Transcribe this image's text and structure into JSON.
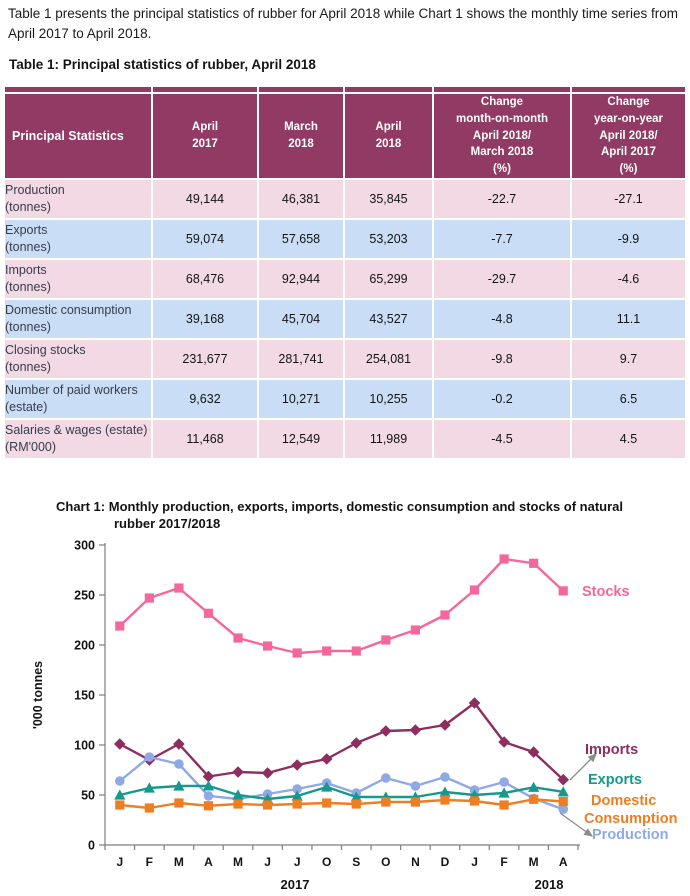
{
  "intro_text": "Table 1 presents the principal statistics of rubber for April 2018 while Chart 1 shows the monthly time series from April 2017 to April 2018.",
  "table": {
    "title": "Table 1: Principal statistics  of rubber, April 2018",
    "columns": [
      [
        "Principal Statistics"
      ],
      [
        "April",
        "2017"
      ],
      [
        "March",
        "2018"
      ],
      [
        "April",
        "2018"
      ],
      [
        "Change",
        "month-on-month",
        "April 2018/",
        "March 2018",
        "(%)"
      ],
      [
        "Change",
        "year-on-year",
        "April 2018/",
        "April 2017",
        "(%)"
      ]
    ],
    "rows": [
      {
        "label": "Production",
        "unit": "(tonnes)",
        "values": [
          "49,144",
          "46,381",
          "35,845",
          "-22.7",
          "-27.1"
        ]
      },
      {
        "label": "Exports",
        "unit": "(tonnes)",
        "values": [
          "59,074",
          "57,658",
          "53,203",
          "-7.7",
          "-9.9"
        ]
      },
      {
        "label": "Imports",
        "unit": "(tonnes)",
        "values": [
          "68,476",
          "92,944",
          "65,299",
          "-29.7",
          "-4.6"
        ]
      },
      {
        "label": "Domestic consumption",
        "unit": "(tonnes)",
        "values": [
          "39,168",
          "45,704",
          "43,527",
          "-4.8",
          "11.1"
        ]
      },
      {
        "label": "Closing stocks",
        "unit": "(tonnes)",
        "values": [
          "231,677",
          "281,741",
          "254,081",
          "-9.8",
          "9.7"
        ]
      },
      {
        "label": "Number of paid workers",
        "unit": "(estate)",
        "values": [
          "9,632",
          "10,271",
          "10,255",
          "-0.2",
          "6.5"
        ]
      },
      {
        "label": "Salaries & wages (estate)",
        "unit": "(RM'000)",
        "values": [
          "11,468",
          "12,549",
          "11,989",
          "-4.5",
          "4.5"
        ]
      }
    ]
  },
  "chart": {
    "title_prefix": "Chart 1:",
    "title": "Monthly production, exports, imports, domestic consumption  and stocks  of natural rubber 2017/2018"
  },
  "chart_data": {
    "type": "line",
    "title": "Chart 1: Monthly production, exports, imports, domestic consumption and stocks of natural rubber 2017/2018",
    "ylabel": "'000 tonnes",
    "ylim": [
      0,
      300
    ],
    "yticks": [
      0,
      50,
      100,
      150,
      200,
      250,
      300
    ],
    "grid": false,
    "legend_position": "right-annotations",
    "categories": [
      "J",
      "F",
      "M",
      "A",
      "M",
      "J",
      "J",
      "O",
      "S",
      "O",
      "N",
      "D",
      "J",
      "F",
      "M",
      "A"
    ],
    "x_group_labels": [
      "2017",
      "2018"
    ],
    "series": [
      {
        "name": "Stocks",
        "label_lines": [
          "Stocks"
        ],
        "color": "#F4679D",
        "marker": "square",
        "values": [
          219,
          247,
          257,
          231.7,
          207,
          199,
          192,
          194,
          194,
          205,
          215,
          230,
          255,
          286,
          281.7,
          254.1
        ]
      },
      {
        "name": "Imports",
        "label_lines": [
          "Imports"
        ],
        "color": "#8E2E5F",
        "marker": "diamond",
        "values": [
          101,
          85,
          101,
          68.5,
          73,
          72,
          80,
          86,
          102,
          114,
          115,
          120,
          142,
          103,
          92.9,
          65.3
        ]
      },
      {
        "name": "Production",
        "label_lines": [
          "Production"
        ],
        "color": "#8FA9E6",
        "marker": "circle",
        "values": [
          64,
          88,
          81,
          49.1,
          46,
          51,
          56,
          62,
          52,
          67,
          59,
          68,
          55,
          63,
          46.4,
          35.8
        ]
      },
      {
        "name": "Exports",
        "label_lines": [
          "Exports"
        ],
        "color": "#16998C",
        "marker": "triangle",
        "values": [
          50,
          57,
          59,
          59.1,
          50,
          46,
          49,
          58,
          48,
          48,
          48,
          53,
          50,
          52,
          57.7,
          53.2
        ]
      },
      {
        "name": "Domestic Consumption",
        "label_lines": [
          "Domestic",
          "Consumption"
        ],
        "color": "#EF7D22",
        "marker": "square",
        "values": [
          40,
          37,
          42,
          39.2,
          41,
          40,
          41,
          42,
          41,
          43,
          43,
          45,
          44,
          40,
          45.7,
          43.5
        ]
      }
    ]
  },
  "colors": {
    "table_header_bg": "#913A64",
    "row_pink": "#F2D9E3",
    "row_blue": "#C9DDF6",
    "header_text": "#FFFFFF",
    "axis": "#7F7F7F",
    "annotation_arrow": "#8C8C8C"
  }
}
